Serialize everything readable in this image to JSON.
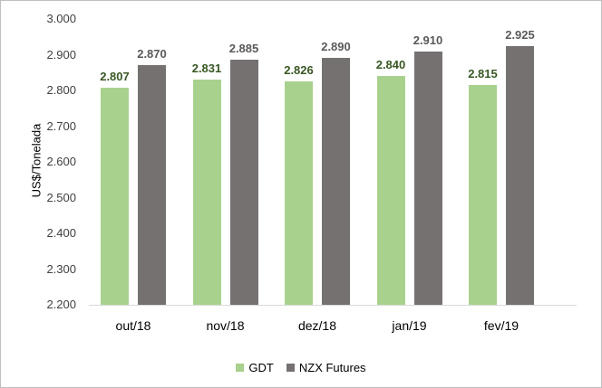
{
  "chart_data": {
    "type": "bar",
    "title": "",
    "xlabel": "",
    "ylabel": "US$/Tonelada",
    "ylim": [
      2200,
      3000
    ],
    "yticks": [
      "2.200",
      "2.300",
      "2.400",
      "2.500",
      "2.600",
      "2.700",
      "2.800",
      "2.900",
      "3.000"
    ],
    "categories": [
      "out/18",
      "nov/18",
      "dez/18",
      "jan/19",
      "fev/19"
    ],
    "series": [
      {
        "name": "GDT",
        "color": "#a9d18e",
        "values": [
          2807,
          2831,
          2826,
          2840,
          2815
        ],
        "labels": [
          "2.807",
          "2.831",
          "2.826",
          "2.840",
          "2.815"
        ]
      },
      {
        "name": "NZX Futures",
        "color": "#767171",
        "values": [
          2870,
          2885,
          2890,
          2910,
          2925
        ],
        "labels": [
          "2.870",
          "2.885",
          "2.890",
          "2.910",
          "2.925"
        ]
      }
    ],
    "grid": false,
    "legend_position": "bottom"
  }
}
